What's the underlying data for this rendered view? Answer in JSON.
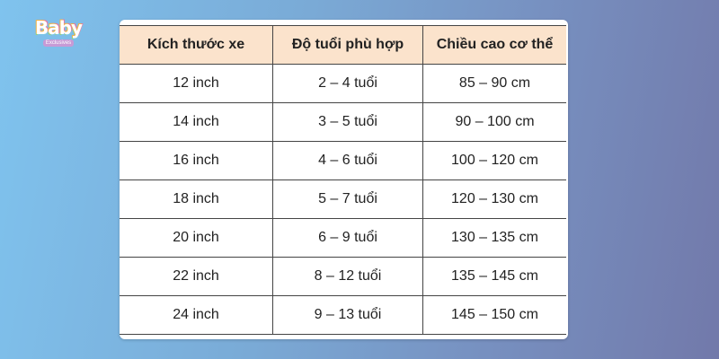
{
  "logo": {
    "text": "Baby",
    "subtext": "Exclusives"
  },
  "table": {
    "headers": [
      "Kích thước xe",
      "Độ tuổi phù hợp",
      "Chiều cao cơ thể"
    ],
    "rows": [
      [
        "12 inch",
        "2 – 4 tuổi",
        "85 – 90 cm"
      ],
      [
        "14 inch",
        "3 – 5 tuổi",
        "90 – 100 cm"
      ],
      [
        "16 inch",
        "4 – 6 tuổi",
        "100 – 120 cm"
      ],
      [
        "18 inch",
        "5 – 7 tuổi",
        "120 – 130 cm"
      ],
      [
        "20 inch",
        "6 – 9 tuổi",
        "130 – 135 cm"
      ],
      [
        "22 inch",
        "8 – 12 tuổi",
        "135 – 145 cm"
      ],
      [
        "24 inch",
        "9 – 13 tuổi",
        "145 – 150 cm"
      ]
    ]
  },
  "colors": {
    "header_bg": "#fbe3cc",
    "border": "#444444"
  }
}
